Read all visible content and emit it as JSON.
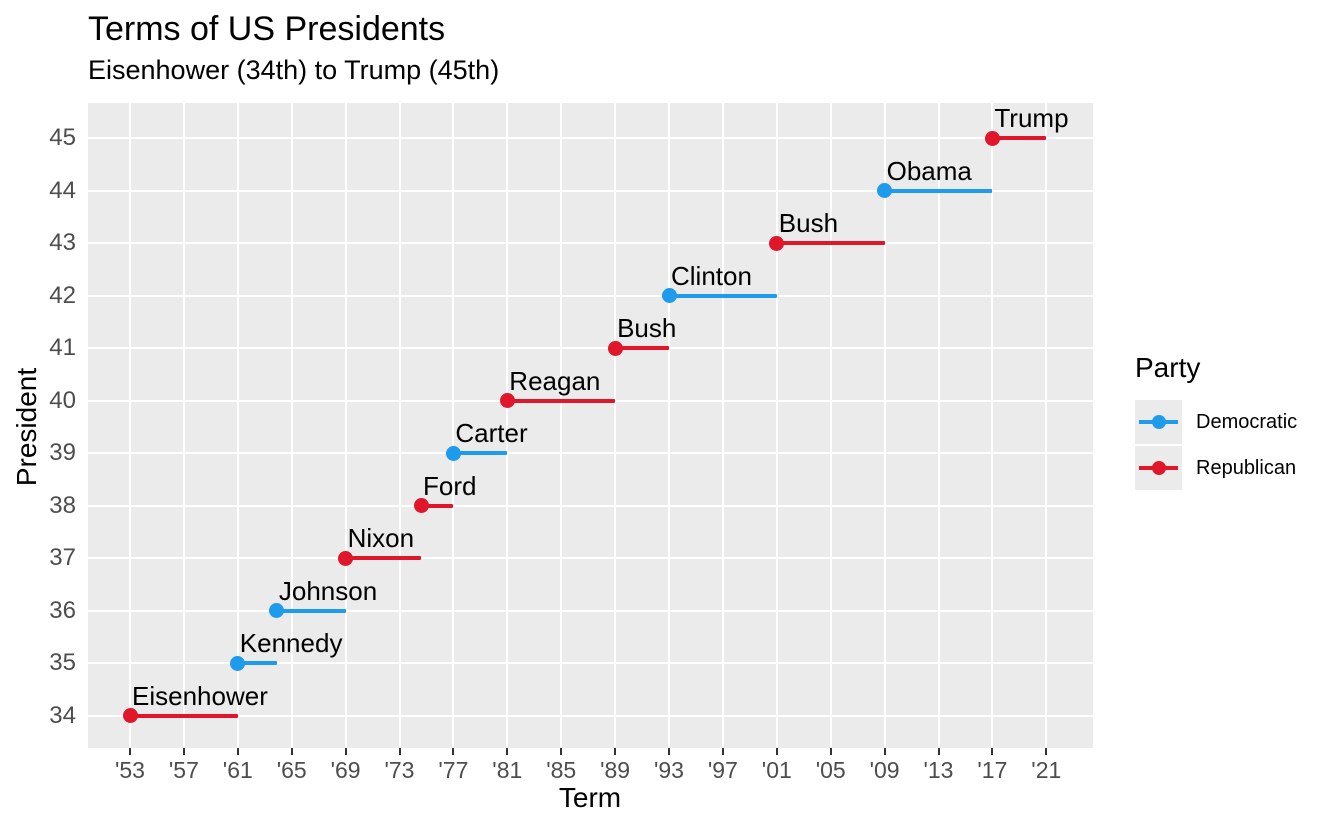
{
  "title": "Terms of US Presidents",
  "subtitle": "Eisenhower (34th) to Trump (45th)",
  "x_axis": {
    "title": "Term",
    "ticks": [
      {
        "year": 1953,
        "label": "'53"
      },
      {
        "year": 1957,
        "label": "'57"
      },
      {
        "year": 1961,
        "label": "'61"
      },
      {
        "year": 1965,
        "label": "'65"
      },
      {
        "year": 1969,
        "label": "'69"
      },
      {
        "year": 1973,
        "label": "'73"
      },
      {
        "year": 1977,
        "label": "'77"
      },
      {
        "year": 1981,
        "label": "'81"
      },
      {
        "year": 1985,
        "label": "'85"
      },
      {
        "year": 1989,
        "label": "'89"
      },
      {
        "year": 1993,
        "label": "'93"
      },
      {
        "year": 1997,
        "label": "'97"
      },
      {
        "year": 2001,
        "label": "'01"
      },
      {
        "year": 2005,
        "label": "'05"
      },
      {
        "year": 2009,
        "label": "'09"
      },
      {
        "year": 2013,
        "label": "'13"
      },
      {
        "year": 2017,
        "label": "'17"
      },
      {
        "year": 2021,
        "label": "'21"
      }
    ]
  },
  "y_axis": {
    "title": "President",
    "ticks": [
      34,
      35,
      36,
      37,
      38,
      39,
      40,
      41,
      42,
      43,
      44,
      45
    ]
  },
  "legend": {
    "title": "Party",
    "items": [
      {
        "label": "Democratic",
        "party": "Democratic"
      },
      {
        "label": "Republican",
        "party": "Republican"
      }
    ]
  },
  "colors": {
    "democratic": "#1E9CEB",
    "republican": "#E0162B",
    "panel_bg": "#EBEBEB",
    "grid": "#FFFFFF",
    "axis_text": "#4D4D4D",
    "tick_mark": "#333333"
  },
  "chart_data": {
    "type": "line",
    "title": "Terms of US Presidents",
    "subtitle": "Eisenhower (34th) to Trump (45th)",
    "xlabel": "Term",
    "ylabel": "President",
    "xlim": [
      1949.6,
      2024.4
    ],
    "ylim": [
      33.4,
      45.6
    ],
    "grid": "major-only, white on grey panel",
    "legend_position": "right",
    "series": [
      {
        "president": 34,
        "name": "Eisenhower",
        "party": "Republican",
        "term_start": 1953,
        "term_end": 1961
      },
      {
        "president": 35,
        "name": "Kennedy",
        "party": "Democratic",
        "term_start": 1961,
        "term_end": 1963.9
      },
      {
        "president": 36,
        "name": "Johnson",
        "party": "Democratic",
        "term_start": 1963.9,
        "term_end": 1969
      },
      {
        "president": 37,
        "name": "Nixon",
        "party": "Republican",
        "term_start": 1969,
        "term_end": 1974.6
      },
      {
        "president": 38,
        "name": "Ford",
        "party": "Republican",
        "term_start": 1974.6,
        "term_end": 1977
      },
      {
        "president": 39,
        "name": "Carter",
        "party": "Democratic",
        "term_start": 1977,
        "term_end": 1981
      },
      {
        "president": 40,
        "name": "Reagan",
        "party": "Republican",
        "term_start": 1981,
        "term_end": 1989
      },
      {
        "president": 41,
        "name": "Bush",
        "party": "Republican",
        "term_start": 1989,
        "term_end": 1993
      },
      {
        "president": 42,
        "name": "Clinton",
        "party": "Democratic",
        "term_start": 1993,
        "term_end": 2001
      },
      {
        "president": 43,
        "name": "Bush",
        "party": "Republican",
        "term_start": 2001,
        "term_end": 2009
      },
      {
        "president": 44,
        "name": "Obama",
        "party": "Democratic",
        "term_start": 2009,
        "term_end": 2017
      },
      {
        "president": 45,
        "name": "Trump",
        "party": "Republican",
        "term_start": 2017,
        "term_end": 2021
      }
    ]
  }
}
